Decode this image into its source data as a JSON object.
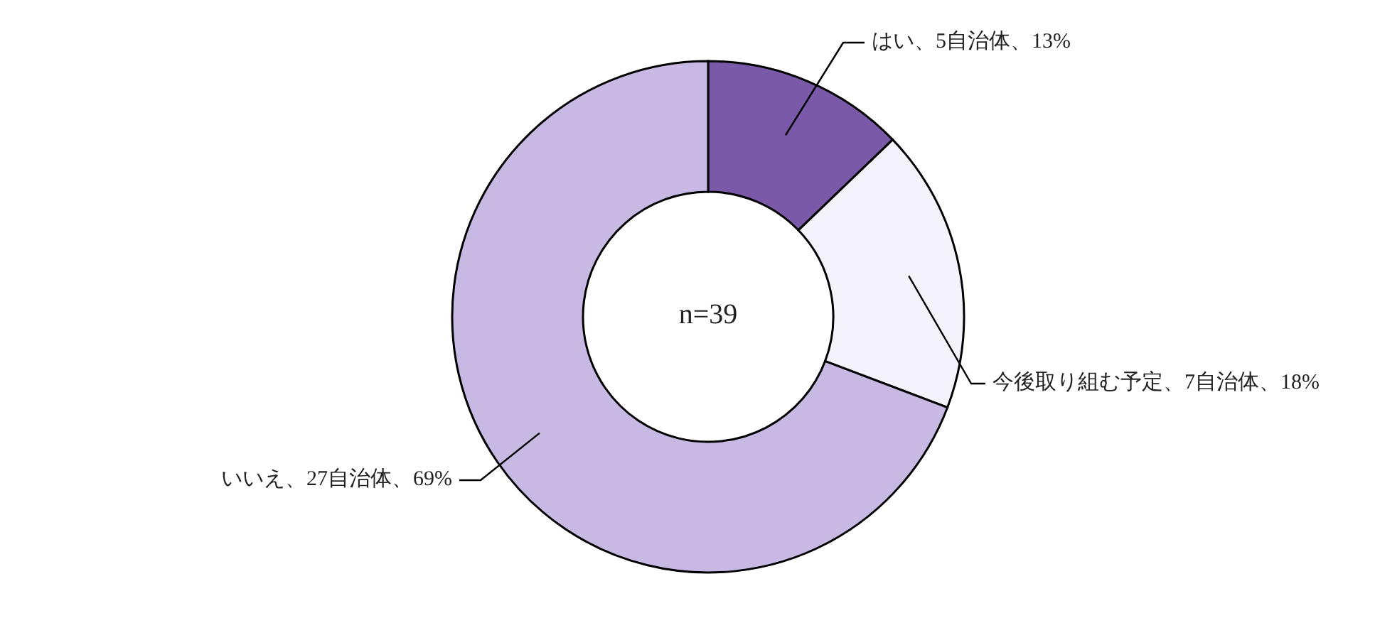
{
  "chart_data": {
    "type": "donut",
    "categories": [
      "はい、5自治体、13%",
      "今後取り組む予定、7自治体、18%",
      "いいえ、27自治体、69%"
    ],
    "values": [
      5,
      7,
      27
    ],
    "colors": [
      "#7a5aa8",
      "#f4f2fa",
      "#c8b8e4"
    ],
    "annotations": [
      "n=39"
    ],
    "legend": false
  }
}
